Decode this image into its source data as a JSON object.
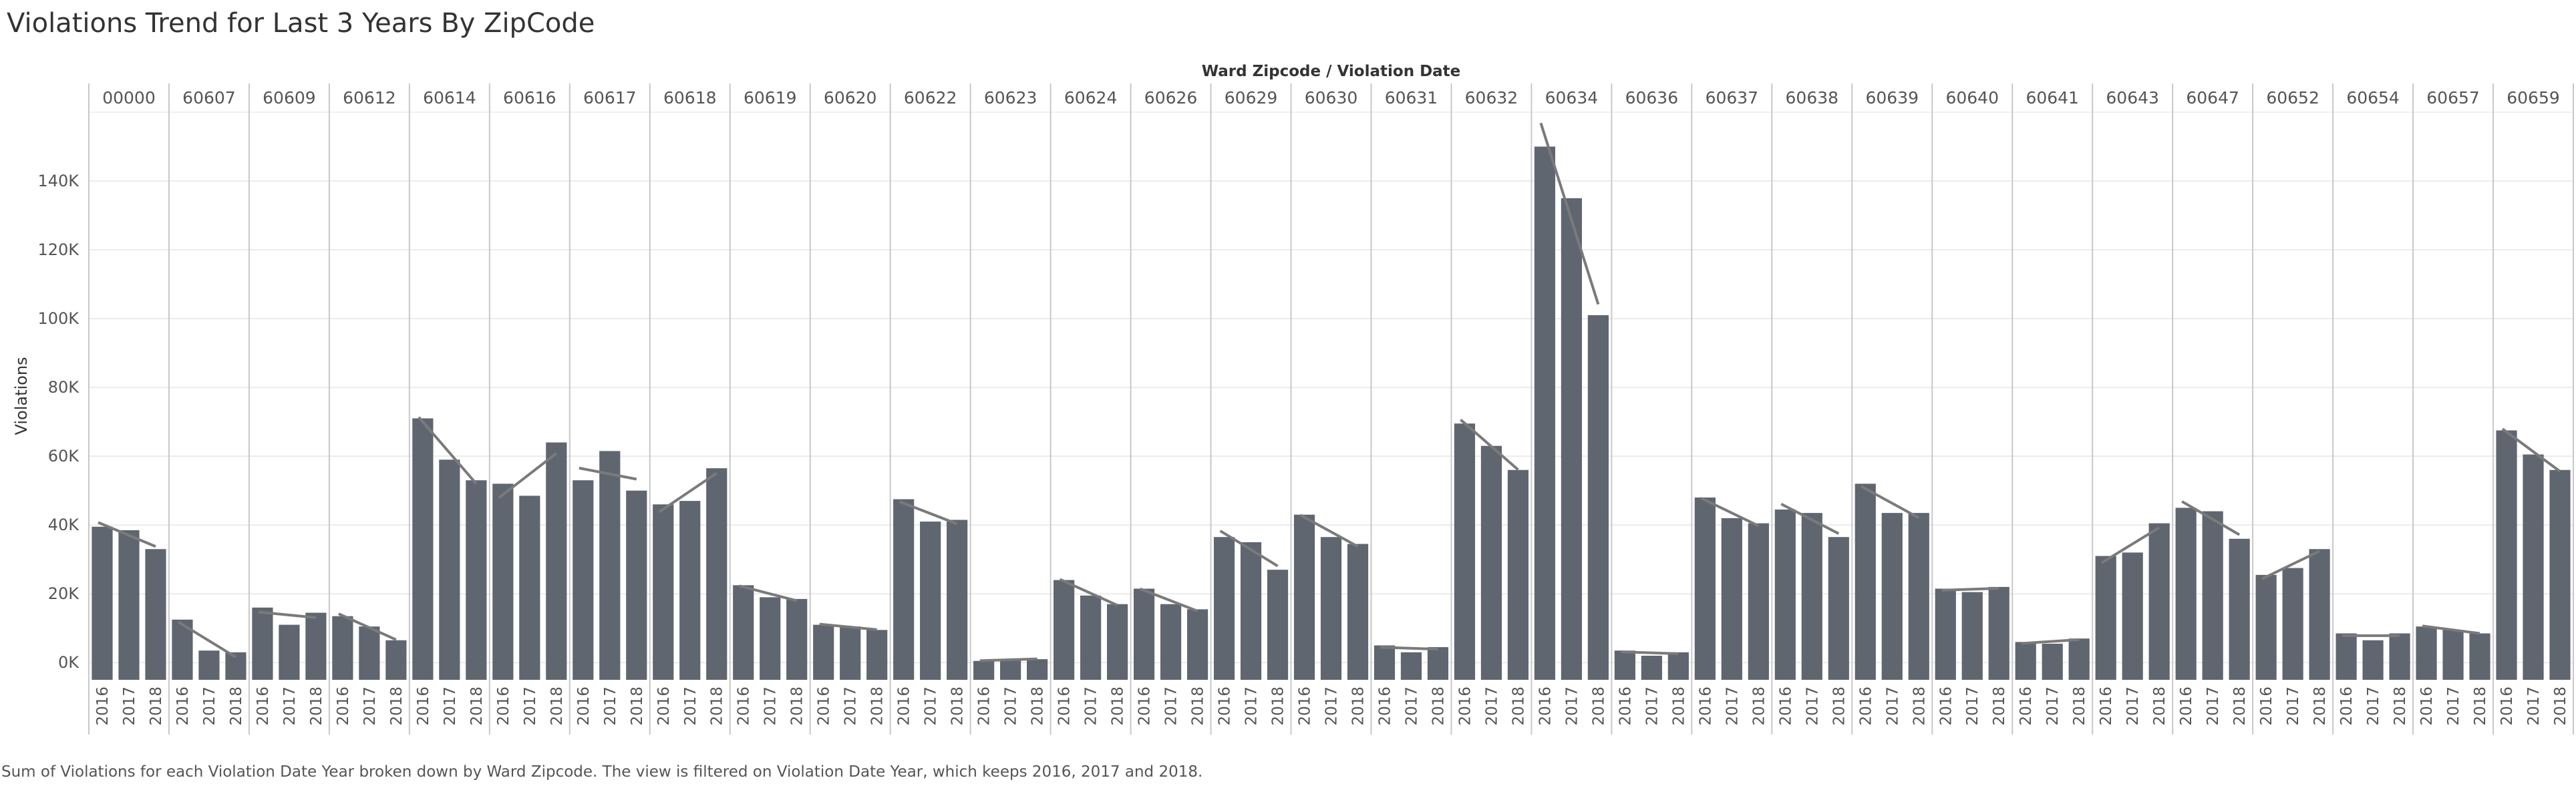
{
  "page": {
    "title": "Violations Trend for Last 3 Years By ZipCode",
    "caption": "Sum of Violations for each Violation Date Year broken down by Ward Zipcode. The view is filtered on Violation Date Year, which keeps 2016, 2017 and 2018."
  },
  "colors": {
    "bar": "#5f6670",
    "trend": "#7a7a7a",
    "grid": "#ececec",
    "divider": "#c8c8c8",
    "text": "#555555"
  },
  "chart_data": {
    "type": "bar",
    "header_label": "Ward Zipcode  /  Violation Date",
    "ylabel": "Violations",
    "ylim": [
      -5000,
      160000
    ],
    "yticks": [
      0,
      20000,
      40000,
      60000,
      80000,
      100000,
      120000,
      140000
    ],
    "ytick_labels": [
      "0K",
      "20K",
      "40K",
      "60K",
      "80K",
      "100K",
      "120K",
      "140K"
    ],
    "years": [
      "2016",
      "2017",
      "2018"
    ],
    "trend_lines": true,
    "grid": true,
    "groups": [
      {
        "zip": "00000",
        "values": [
          39500,
          38500,
          33000
        ]
      },
      {
        "zip": "60607",
        "values": [
          12500,
          3500,
          3000
        ]
      },
      {
        "zip": "60609",
        "values": [
          16000,
          11000,
          14500
        ]
      },
      {
        "zip": "60612",
        "values": [
          13500,
          10500,
          6500
        ]
      },
      {
        "zip": "60614",
        "values": [
          71000,
          59000,
          53000
        ]
      },
      {
        "zip": "60616",
        "values": [
          52000,
          48500,
          64000
        ]
      },
      {
        "zip": "60617",
        "values": [
          53000,
          61500,
          50000
        ]
      },
      {
        "zip": "60618",
        "values": [
          46000,
          47000,
          56500
        ]
      },
      {
        "zip": "60619",
        "values": [
          22500,
          19000,
          18500
        ]
      },
      {
        "zip": "60620",
        "values": [
          11000,
          10500,
          9500
        ]
      },
      {
        "zip": "60622",
        "values": [
          47500,
          41000,
          41500
        ]
      },
      {
        "zip": "60623",
        "values": [
          500,
          1000,
          1000
        ]
      },
      {
        "zip": "60624",
        "values": [
          24000,
          19500,
          17000
        ]
      },
      {
        "zip": "60626",
        "values": [
          21500,
          17000,
          15500
        ]
      },
      {
        "zip": "60629",
        "values": [
          36500,
          35000,
          27000
        ]
      },
      {
        "zip": "60630",
        "values": [
          43000,
          36500,
          34500
        ]
      },
      {
        "zip": "60631",
        "values": [
          5000,
          3000,
          4500
        ]
      },
      {
        "zip": "60632",
        "values": [
          69500,
          63000,
          56000
        ]
      },
      {
        "zip": "60634",
        "values": [
          150000,
          135000,
          101000
        ]
      },
      {
        "zip": "60636",
        "values": [
          3500,
          2000,
          3000
        ]
      },
      {
        "zip": "60637",
        "values": [
          48000,
          42000,
          40500
        ]
      },
      {
        "zip": "60638",
        "values": [
          44500,
          43500,
          36500
        ]
      },
      {
        "zip": "60639",
        "values": [
          52000,
          43500,
          43500
        ]
      },
      {
        "zip": "60640",
        "values": [
          21500,
          20500,
          22000
        ]
      },
      {
        "zip": "60641",
        "values": [
          6000,
          5500,
          7000
        ]
      },
      {
        "zip": "60643",
        "values": [
          31000,
          32000,
          40500
        ]
      },
      {
        "zip": "60647",
        "values": [
          45000,
          44000,
          36000
        ]
      },
      {
        "zip": "60652",
        "values": [
          25500,
          27500,
          33000
        ]
      },
      {
        "zip": "60654",
        "values": [
          8500,
          6500,
          8500
        ]
      },
      {
        "zip": "60657",
        "values": [
          10500,
          9500,
          8500
        ]
      },
      {
        "zip": "60659",
        "values": [
          67500,
          60500,
          56000
        ]
      }
    ]
  }
}
